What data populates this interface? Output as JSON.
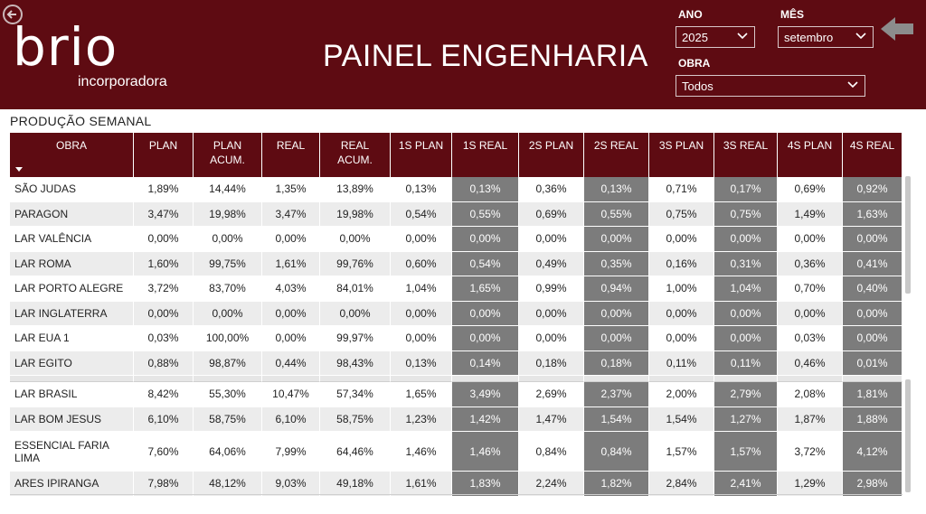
{
  "header": {
    "logo_word": "brio",
    "logo_sub": "incorporadora",
    "title": "PAINEL ENGENHARIA",
    "filters": {
      "ano_label": "ANO",
      "ano_value": "2025",
      "mes_label": "MÊS",
      "mes_value": "setembro",
      "obra_label": "OBRA",
      "obra_value": "Todos"
    }
  },
  "section_title": "PRODUÇÃO SEMANAL",
  "table": {
    "columns": [
      "OBRA",
      "PLAN",
      "PLAN ACUM.",
      "REAL",
      "REAL ACUM.",
      "1S PLAN",
      "1S REAL",
      "2S PLAN",
      "2S REAL",
      "3S PLAN",
      "3S REAL",
      "4S PLAN",
      "4S REAL"
    ],
    "rows_a": [
      [
        "SÃO JUDAS",
        "1,89%",
        "14,44%",
        "1,35%",
        "13,89%",
        "0,13%",
        "0,13%",
        "0,36%",
        "0,13%",
        "0,71%",
        "0,17%",
        "0,69%",
        "0,92%"
      ],
      [
        "PARAGON",
        "3,47%",
        "19,98%",
        "3,47%",
        "19,98%",
        "0,54%",
        "0,55%",
        "0,69%",
        "0,55%",
        "0,75%",
        "0,75%",
        "1,49%",
        "1,63%"
      ],
      [
        "LAR VALÊNCIA",
        "0,00%",
        "0,00%",
        "0,00%",
        "0,00%",
        "0,00%",
        "0,00%",
        "0,00%",
        "0,00%",
        "0,00%",
        "0,00%",
        "0,00%",
        "0,00%"
      ],
      [
        "LAR ROMA",
        "1,60%",
        "99,75%",
        "1,61%",
        "99,76%",
        "0,60%",
        "0,54%",
        "0,49%",
        "0,35%",
        "0,16%",
        "0,31%",
        "0,36%",
        "0,41%"
      ],
      [
        "LAR PORTO ALEGRE",
        "3,72%",
        "83,70%",
        "4,03%",
        "84,01%",
        "1,04%",
        "1,65%",
        "0,99%",
        "0,94%",
        "1,00%",
        "1,04%",
        "0,70%",
        "0,40%"
      ],
      [
        "LAR INGLATERRA",
        "0,00%",
        "0,00%",
        "0,00%",
        "0,00%",
        "0,00%",
        "0,00%",
        "0,00%",
        "0,00%",
        "0,00%",
        "0,00%",
        "0,00%",
        "0,00%"
      ],
      [
        "LAR EUA 1",
        "0,03%",
        "100,00%",
        "0,00%",
        "99,97%",
        "0,00%",
        "0,00%",
        "0,00%",
        "0,00%",
        "0,00%",
        "0,00%",
        "0,03%",
        "0,00%"
      ],
      [
        "LAR EGITO",
        "0,88%",
        "98,87%",
        "0,44%",
        "98,43%",
        "0,13%",
        "0,14%",
        "0,18%",
        "0,18%",
        "0,11%",
        "0,11%",
        "0,46%",
        "0,01%"
      ]
    ],
    "rows_b": [
      [
        "LAR BRASIL",
        "8,42%",
        "55,30%",
        "10,47%",
        "57,34%",
        "1,65%",
        "3,49%",
        "2,69%",
        "2,37%",
        "2,00%",
        "2,79%",
        "2,08%",
        "1,81%"
      ],
      [
        "LAR BOM JESUS",
        "6,10%",
        "58,75%",
        "6,10%",
        "58,75%",
        "1,23%",
        "1,42%",
        "1,47%",
        "1,54%",
        "1,54%",
        "1,27%",
        "1,87%",
        "1,88%"
      ],
      [
        "ESSENCIAL FARIA LIMA",
        "7,60%",
        "64,06%",
        "7,99%",
        "64,46%",
        "1,46%",
        "1,46%",
        "0,84%",
        "0,84%",
        "1,57%",
        "1,57%",
        "3,72%",
        "4,12%"
      ],
      [
        "ARES IPIRANGA",
        "7,98%",
        "48,12%",
        "9,03%",
        "49,18%",
        "1,61%",
        "1,83%",
        "2,24%",
        "1,82%",
        "2,84%",
        "2,41%",
        "1,29%",
        "2,98%"
      ]
    ]
  },
  "icons": [
    "back-icon",
    "chevron-down-icon",
    "arrow-left-icon",
    "sort-desc-icon"
  ],
  "colors": {
    "brand": "#5e0b12",
    "real_cell": "#7c7c7c"
  }
}
